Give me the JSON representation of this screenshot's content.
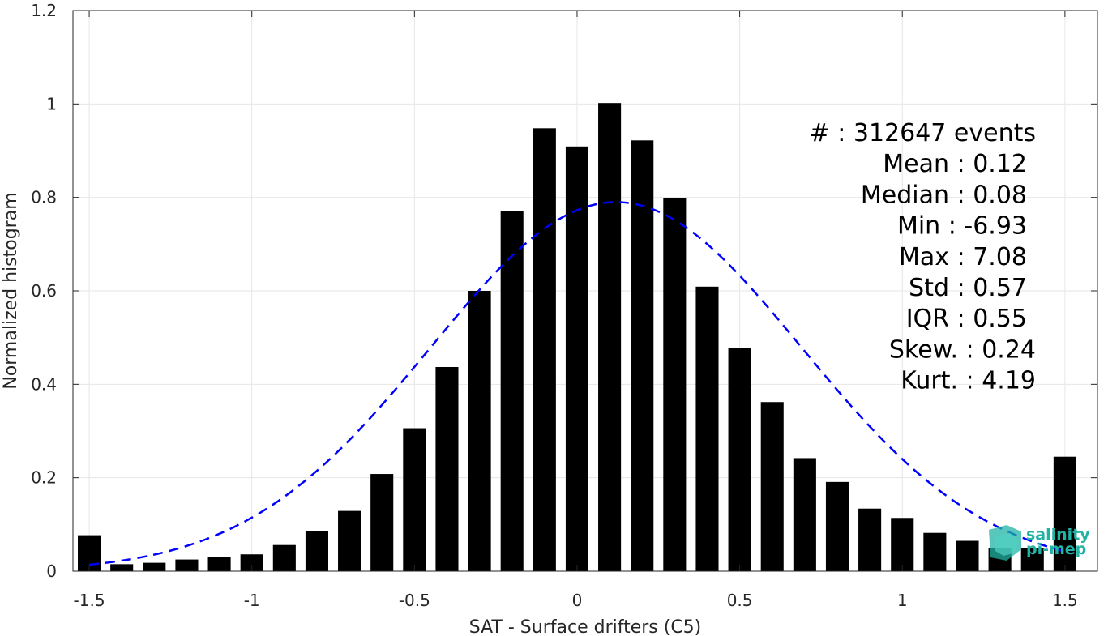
{
  "chart_data": {
    "type": "bar",
    "xlabel": "SAT - Surface drifters (C5)",
    "ylabel": "Normalized histogram",
    "xlim": [
      -1.55,
      1.6
    ],
    "ylim": [
      0,
      1.2
    ],
    "grid": true,
    "x_ticks": [
      {
        "value": -1.5,
        "label": "-1.5"
      },
      {
        "value": -1,
        "label": "-1"
      },
      {
        "value": -0.5,
        "label": "-0.5"
      },
      {
        "value": 0,
        "label": "0"
      },
      {
        "value": 0.5,
        "label": "0.5"
      },
      {
        "value": 1,
        "label": "1"
      },
      {
        "value": 1.5,
        "label": "1.5"
      }
    ],
    "y_ticks": [
      {
        "value": 0,
        "label": "0"
      },
      {
        "value": 0.2,
        "label": "0.2"
      },
      {
        "value": 0.4,
        "label": "0.4"
      },
      {
        "value": 0.6,
        "label": "0.6"
      },
      {
        "value": 0.8,
        "label": "0.8"
      },
      {
        "value": 1,
        "label": "1"
      },
      {
        "value": 1.2,
        "label": "1.2"
      }
    ],
    "bar_color": "#000000",
    "bars": {
      "x": [
        -1.5,
        -1.4,
        -1.3,
        -1.2,
        -1.1,
        -1.0,
        -0.9,
        -0.8,
        -0.7,
        -0.6,
        -0.5,
        -0.4,
        -0.3,
        -0.2,
        -0.1,
        0.0,
        0.1,
        0.2,
        0.3,
        0.4,
        0.5,
        0.6,
        0.7,
        0.8,
        0.9,
        1.0,
        1.1,
        1.2,
        1.3,
        1.4,
        1.5
      ],
      "values": [
        0.077,
        0.015,
        0.018,
        0.025,
        0.031,
        0.036,
        0.056,
        0.086,
        0.129,
        0.208,
        0.306,
        0.437,
        0.6,
        0.771,
        0.948,
        0.909,
        1.002,
        0.922,
        0.799,
        0.609,
        0.477,
        0.362,
        0.242,
        0.191,
        0.134,
        0.114,
        0.082,
        0.065,
        0.05,
        0.05,
        0.245
      ]
    },
    "fit_curve": {
      "style": "dashed",
      "color": "#0000ff",
      "mean": 0.12,
      "std": 0.57,
      "peak": 0.79,
      "x_range": [
        -1.5,
        1.5
      ]
    },
    "annotation": [
      "#  : 312647 events",
      "Mean : 0.12",
      "Median : 0.08",
      "Min : -6.93",
      "Max : 7.08",
      "Std : 0.57",
      "IQR : 0.55",
      "Skew. : 0.24",
      "Kurt. : 4.19"
    ]
  },
  "logo": {
    "line1": "salinity",
    "line2": "pi-mep"
  }
}
